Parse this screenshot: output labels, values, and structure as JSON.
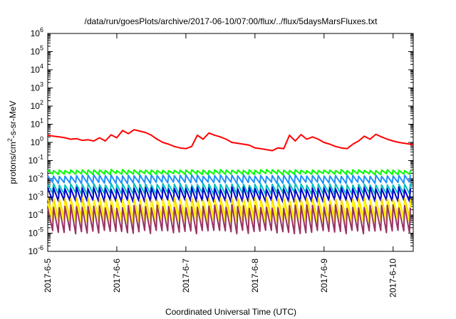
{
  "chart_data": {
    "type": "line",
    "title": "/data/run/goesPlots/archive/2017-06-10/07:00/flux/../flux/5daysMarsFluxes.txt",
    "xlabel": "Coordinated Universal Time (UTC)",
    "ylabel": "protons/cm²-s-sr-MeV",
    "y_scale": "log",
    "ylim": [
      1e-06,
      1000000.0
    ],
    "xlim": [
      "2017-06-05T00:00",
      "2017-06-10T07:00"
    ],
    "x_ticks": [
      "2017-6-5",
      "2017-6-6",
      "2017-6-7",
      "2017-6-8",
      "2017-6-9",
      "2017-6-10"
    ],
    "y_ticks": [
      {
        "value": 1e-06,
        "mantissa": "10",
        "exp": "-6"
      },
      {
        "value": 1e-05,
        "mantissa": "10",
        "exp": "-5"
      },
      {
        "value": 0.0001,
        "mantissa": "10",
        "exp": "-4"
      },
      {
        "value": 0.001,
        "mantissa": "10",
        "exp": "-3"
      },
      {
        "value": 0.01,
        "mantissa": "10",
        "exp": "-2"
      },
      {
        "value": 0.1,
        "mantissa": "10",
        "exp": "-1"
      },
      {
        "value": 1,
        "mantissa": "10",
        "exp": "0"
      },
      {
        "value": 10.0,
        "mantissa": "10",
        "exp": "1"
      },
      {
        "value": 100.0,
        "mantissa": "10",
        "exp": "2"
      },
      {
        "value": 1000.0,
        "mantissa": "10",
        "exp": "3"
      },
      {
        "value": 10000.0,
        "mantissa": "10",
        "exp": "4"
      },
      {
        "value": 100000.0,
        "mantissa": "10",
        "exp": "5"
      },
      {
        "value": 1000000.0,
        "mantissa": "10",
        "exp": "6"
      }
    ],
    "grid": false,
    "legend": "none",
    "series": [
      {
        "color": "#ff0000",
        "x": [
          "2017-06-05T00:00",
          "2017-06-05T02:00",
          "2017-06-05T04:00",
          "2017-06-05T06:00",
          "2017-06-05T08:00",
          "2017-06-05T10:00",
          "2017-06-05T12:00",
          "2017-06-05T14:00",
          "2017-06-05T16:00",
          "2017-06-05T18:00",
          "2017-06-05T20:00",
          "2017-06-05T22:00",
          "2017-06-06T00:00",
          "2017-06-06T02:00",
          "2017-06-06T04:00",
          "2017-06-06T06:00",
          "2017-06-06T08:00",
          "2017-06-06T10:00",
          "2017-06-06T12:00",
          "2017-06-06T14:00",
          "2017-06-06T16:00",
          "2017-06-06T18:00",
          "2017-06-06T20:00",
          "2017-06-06T22:00",
          "2017-06-07T00:00",
          "2017-06-07T02:00",
          "2017-06-07T04:00",
          "2017-06-07T06:00",
          "2017-06-07T08:00",
          "2017-06-07T10:00",
          "2017-06-07T12:00",
          "2017-06-07T14:00",
          "2017-06-07T16:00",
          "2017-06-07T18:00",
          "2017-06-07T20:00",
          "2017-06-07T22:00",
          "2017-06-08T00:00",
          "2017-06-08T02:00",
          "2017-06-08T04:00",
          "2017-06-08T06:00",
          "2017-06-08T08:00",
          "2017-06-08T10:00",
          "2017-06-08T12:00",
          "2017-06-08T14:00",
          "2017-06-08T16:00",
          "2017-06-08T18:00",
          "2017-06-08T20:00",
          "2017-06-08T22:00",
          "2017-06-09T00:00",
          "2017-06-09T02:00",
          "2017-06-09T04:00",
          "2017-06-09T06:00",
          "2017-06-09T08:00",
          "2017-06-09T10:00",
          "2017-06-09T12:00",
          "2017-06-09T14:00",
          "2017-06-09T16:00",
          "2017-06-09T18:00",
          "2017-06-09T20:00",
          "2017-06-09T22:00",
          "2017-06-10T00:00",
          "2017-06-10T02:00",
          "2017-06-10T04:00",
          "2017-06-10T06:00",
          "2017-06-10T07:00"
        ],
        "y": [
          2.5,
          2.2,
          2.0,
          1.8,
          1.5,
          1.6,
          1.3,
          1.4,
          1.2,
          1.8,
          1.2,
          2.6,
          1.8,
          4.5,
          3.0,
          5.0,
          4.2,
          3.5,
          2.5,
          1.5,
          1.0,
          0.8,
          0.6,
          0.5,
          0.45,
          0.6,
          2.5,
          1.5,
          3.3,
          2.5,
          2.0,
          1.5,
          1.0,
          0.9,
          0.8,
          0.7,
          0.5,
          0.45,
          0.4,
          0.35,
          0.5,
          0.45,
          2.5,
          1.2,
          2.7,
          1.5,
          2.0,
          1.5,
          1.0,
          0.8,
          0.6,
          0.5,
          0.45,
          0.8,
          1.2,
          2.2,
          1.5,
          2.8,
          2.0,
          1.5,
          1.2,
          1.0,
          0.9,
          0.8,
          0.75
        ]
      },
      {
        "color": "#00ff00",
        "base": 0.03,
        "dip": 0.018,
        "jitter": 0.15
      },
      {
        "color": "#1e90ff",
        "base": 0.015,
        "dip": 0.006,
        "jitter": 0.2
      },
      {
        "color": "#00bfbf",
        "base": 0.005,
        "dip": 0.0015,
        "jitter": 0.25
      },
      {
        "color": "#0000cc",
        "base": 0.003,
        "dip": 0.0006,
        "jitter": 0.3
      },
      {
        "color": "#ffd700",
        "base": 0.0008,
        "dip": 7e-05,
        "jitter": 0.35
      },
      {
        "color": "#ffff00",
        "base": 0.0005,
        "dip": 4e-05,
        "jitter": 0.4
      },
      {
        "color": "#993366",
        "base": 0.0003,
        "dip": 1.2e-05,
        "jitter": 0.45
      }
    ]
  }
}
